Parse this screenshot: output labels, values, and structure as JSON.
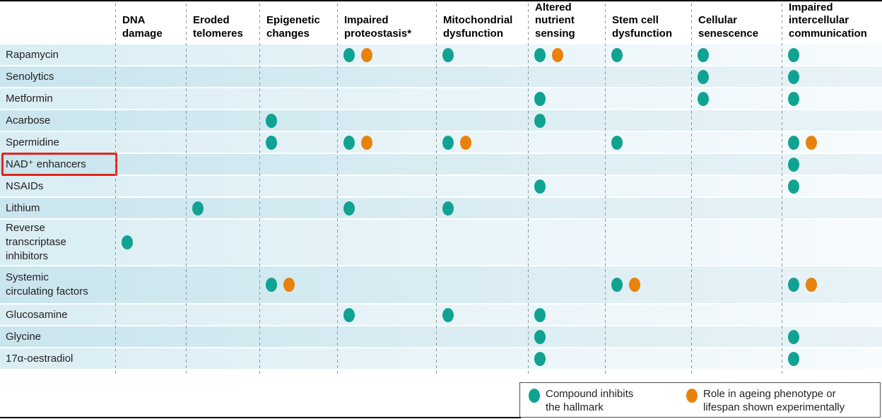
{
  "colors": {
    "teal": "#10a391",
    "orange": "#e8820d",
    "highlight_red": "#e2261c"
  },
  "legend": {
    "items": [
      {
        "icon": "teal-dot",
        "label": "Compound inhibits\nthe hallmark"
      },
      {
        "icon": "orange-dot",
        "label": "Role in ageing phenotype or\nlifespan shown experimentally"
      }
    ]
  },
  "chart_data": {
    "type": "table",
    "title": "Compounds versus hallmarks of ageing matrix",
    "columns": [
      "DNA\ndamage",
      "Eroded\ntelomeres",
      "Epigenetic\nchanges",
      "Impaired\nproteostasis*",
      "Mitochondrial\ndysfunction",
      "Altered\nnutrient\nsensing",
      "Stem cell\ndysfunction",
      "Cellular\nsenescence",
      "Impaired\nintercellular\ncommunication"
    ],
    "cell_codes": {
      "t": "compound inhibits the hallmark",
      "to": "inhibits hallmark + role in ageing phenotype or lifespan shown experimentally",
      "": "no mark"
    },
    "rows": [
      {
        "label": "Rapamycin",
        "cells": [
          "",
          "",
          "",
          "to",
          "t",
          "to",
          "t",
          "t",
          "t"
        ]
      },
      {
        "label": "Senolytics",
        "cells": [
          "",
          "",
          "",
          "",
          "",
          "",
          "",
          "t",
          "t"
        ]
      },
      {
        "label": "Metformin",
        "cells": [
          "",
          "",
          "",
          "",
          "",
          "t",
          "",
          "t",
          "t"
        ]
      },
      {
        "label": "Acarbose",
        "cells": [
          "",
          "",
          "t",
          "",
          "",
          "t",
          "",
          "",
          ""
        ]
      },
      {
        "label": "Spermidine",
        "cells": [
          "",
          "",
          "t",
          "to",
          "to",
          "",
          "t",
          "",
          "to"
        ]
      },
      {
        "label": "NAD⁺ enhancers",
        "cells": [
          "",
          "",
          "",
          "",
          "",
          "",
          "",
          "",
          "t"
        ],
        "highlighted": true
      },
      {
        "label": "NSAIDs",
        "cells": [
          "",
          "",
          "",
          "",
          "",
          "t",
          "",
          "",
          "t"
        ]
      },
      {
        "label": "Lithium",
        "cells": [
          "",
          "t",
          "",
          "t",
          "t",
          "",
          "",
          "",
          ""
        ]
      },
      {
        "label": "Reverse\ntranscriptase\ninhibitors",
        "cells": [
          "t",
          "",
          "",
          "",
          "",
          "",
          "",
          "",
          ""
        ],
        "tall": 3
      },
      {
        "label": "Systemic\ncirculating factors",
        "cells": [
          "",
          "",
          "to",
          "",
          "",
          "",
          "to",
          "",
          "to"
        ],
        "tall": 2
      },
      {
        "label": "Glucosamine",
        "cells": [
          "",
          "",
          "",
          "t",
          "t",
          "t",
          "",
          "",
          ""
        ]
      },
      {
        "label": "Glycine",
        "cells": [
          "",
          "",
          "",
          "",
          "",
          "t",
          "",
          "",
          "t"
        ]
      },
      {
        "label": "17α-oestradiol",
        "cells": [
          "",
          "",
          "",
          "",
          "",
          "t",
          "",
          "",
          "t"
        ]
      }
    ],
    "legend_entries": [
      "Compound inhibits the hallmark",
      "Role in ageing phenotype or lifespan shown experimentally"
    ],
    "highlighted_row": "NAD⁺ enhancers"
  }
}
